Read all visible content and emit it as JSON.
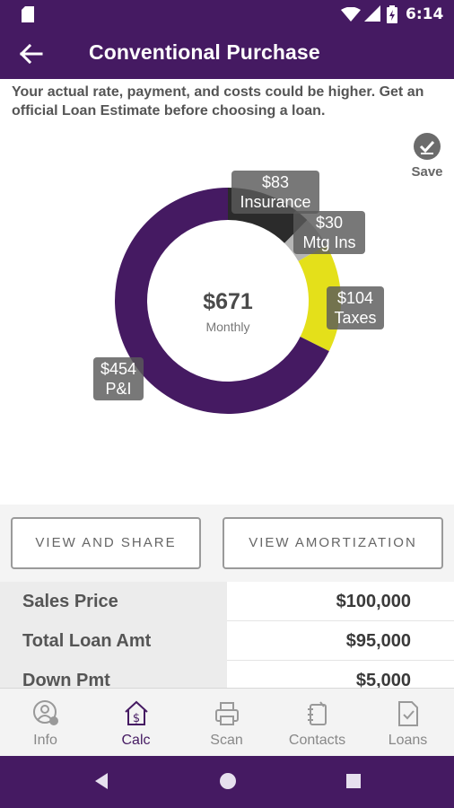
{
  "status_bar": {
    "time": "6:14",
    "icons": [
      "sd-card-icon",
      "wifi-icon",
      "cellular-icon",
      "battery-icon"
    ]
  },
  "app_bar": {
    "title": "Conventional Purchase",
    "back_icon": "back-arrow-icon"
  },
  "disclaimer": "Your actual rate, payment, and costs could be higher. Get an official Loan Estimate before choosing a loan.",
  "save": {
    "label": "Save",
    "icon": "check-circle-icon"
  },
  "chart_data": {
    "type": "pie",
    "donut": true,
    "center_value": "$671",
    "center_label": "Monthly",
    "slices": [
      {
        "label": "Insurance",
        "value": 83,
        "value_label": "$83",
        "color": "#2b2b2b"
      },
      {
        "label": "Mtg Ins",
        "value": 30,
        "value_label": "$30",
        "color": "#b5b5b5"
      },
      {
        "label": "Taxes",
        "value": 104,
        "value_label": "$104",
        "color": "#e4e01a"
      },
      {
        "label": "P&I",
        "value": 454,
        "value_label": "$454",
        "color": "#451a62"
      }
    ]
  },
  "buttons": {
    "view_share": "VIEW AND SHARE",
    "view_amortization": "VIEW AMORTIZATION"
  },
  "table": [
    {
      "label": "Sales Price",
      "value": "$100,000"
    },
    {
      "label": "Total Loan Amt",
      "value": "$95,000"
    },
    {
      "label": "Down Pmt",
      "value": "$5,000"
    }
  ],
  "tabs": [
    {
      "label": "Info",
      "icon": "info-person-icon",
      "active": false
    },
    {
      "label": "Calc",
      "icon": "house-dollar-icon",
      "active": true
    },
    {
      "label": "Scan",
      "icon": "printer-icon",
      "active": false
    },
    {
      "label": "Contacts",
      "icon": "contacts-icon",
      "active": false
    },
    {
      "label": "Loans",
      "icon": "document-check-icon",
      "active": false
    }
  ],
  "colors": {
    "brand": "#451a62",
    "accent": "#e4e01a"
  }
}
